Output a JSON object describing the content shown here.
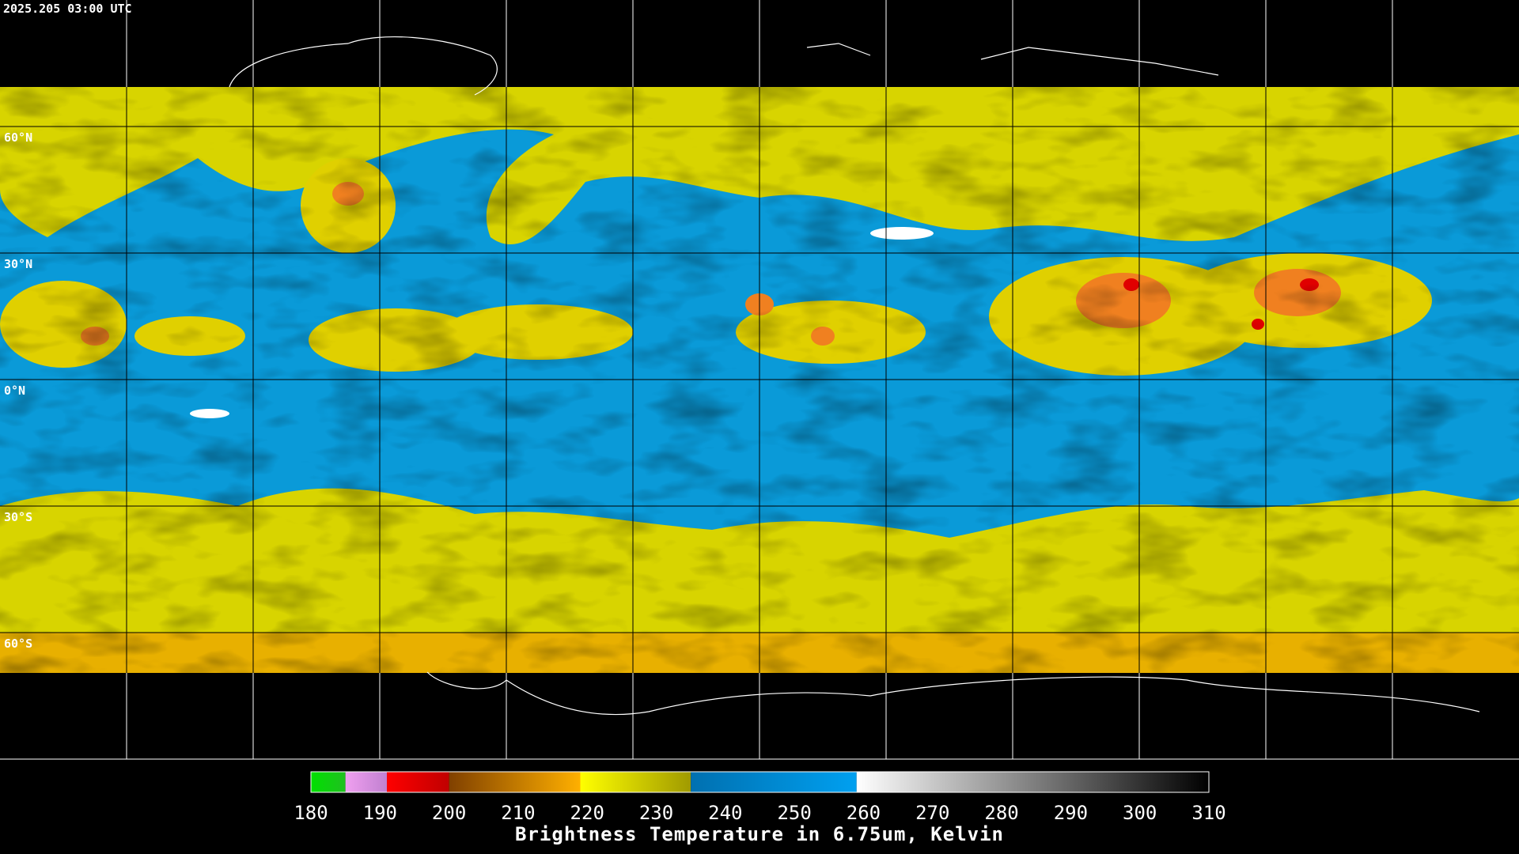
{
  "timestamp": "2025.205 03:00 UTC",
  "latitude_labels": [
    "60°N",
    "30°N",
    "0°N",
    "30°S",
    "60°S"
  ],
  "colorbar": {
    "title": "Brightness Temperature in 6.75um, Kelvin",
    "range": [
      180,
      310
    ],
    "ticks": [
      180,
      190,
      200,
      210,
      220,
      230,
      240,
      250,
      260,
      270,
      280,
      290,
      300,
      310
    ],
    "segments": [
      {
        "from": 180,
        "to": 185,
        "colors": [
          "#00e000",
          "#20c020"
        ]
      },
      {
        "from": 185,
        "to": 191,
        "colors": [
          "#f0a0f0",
          "#c080d0"
        ]
      },
      {
        "from": 191,
        "to": 200,
        "colors": [
          "#ff0000",
          "#c00000"
        ]
      },
      {
        "from": 200,
        "to": 219,
        "colors": [
          "#804000",
          "#ffb000"
        ]
      },
      {
        "from": 219,
        "to": 235,
        "colors": [
          "#ffff00",
          "#a09a00"
        ]
      },
      {
        "from": 235,
        "to": 259,
        "colors": [
          "#0070b0",
          "#00a0f0"
        ]
      },
      {
        "from": 259,
        "to": 310,
        "colors": [
          "#ffffff",
          "#000000"
        ]
      }
    ]
  }
}
